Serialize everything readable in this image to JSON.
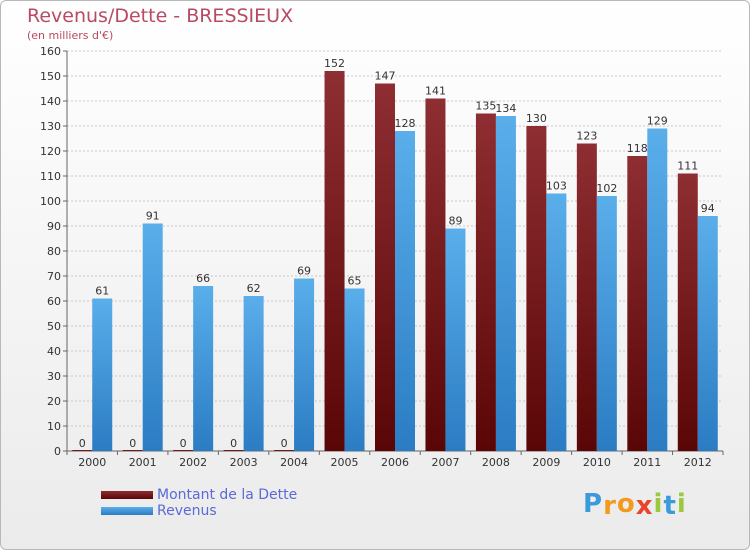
{
  "chart_data": {
    "type": "bar",
    "title": "Revenus/Dette - BRESSIEUX",
    "subtitle": "(en milliers d'€)",
    "categories": [
      "2000",
      "2001",
      "2002",
      "2003",
      "2004",
      "2005",
      "2006",
      "2007",
      "2008",
      "2009",
      "2010",
      "2011",
      "2012"
    ],
    "series": [
      {
        "name": "Montant de la Dette",
        "color": "#7a1a1d",
        "values": [
          0,
          0,
          0,
          0,
          0,
          152,
          147,
          141,
          135,
          130,
          123,
          118,
          111
        ]
      },
      {
        "name": "Revenus",
        "color": "#4ea3e6",
        "values": [
          61,
          91,
          66,
          62,
          69,
          65,
          128,
          89,
          134,
          103,
          102,
          129,
          94
        ]
      }
    ],
    "yticks": [
      0,
      10,
      20,
      30,
      40,
      50,
      60,
      70,
      80,
      90,
      100,
      110,
      120,
      130,
      140,
      150,
      160
    ],
    "ylim": [
      0,
      160
    ],
    "grid": true,
    "legend_position": "bottom-left"
  },
  "logo": {
    "text": "Proxiti",
    "letters": [
      "P",
      "r",
      "o",
      "x",
      "i",
      "t",
      "i"
    ],
    "colors": [
      "#3b9ad9",
      "#f39a1e",
      "#f39a1e",
      "#e8452c",
      "#9bc83c",
      "#3b9ad9",
      "#9bc83c"
    ]
  }
}
